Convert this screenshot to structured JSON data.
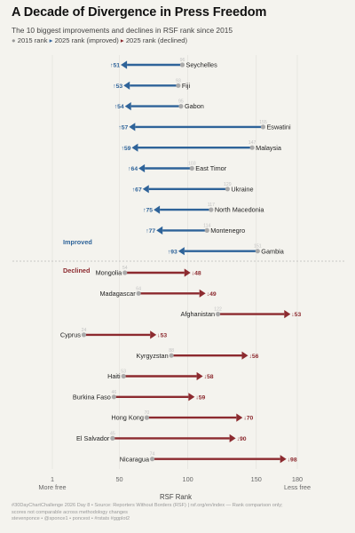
{
  "title": "A Decade of Divergence in Press Freedom",
  "subtitle": "The 10 biggest improvements and declines in RSF rank since 2015",
  "legend": {
    "marker_2015": "●",
    "label_2015": "2015 rank",
    "marker_improved": "▸",
    "label_improved": "2025 rank (improved)",
    "marker_declined": "▸",
    "label_declined": "2025 rank (declined)"
  },
  "caption": {
    "line1": "#30DayChartChallenge 2026 Day 8 • Source: Reporters Without Borders (RSF) | rsf.org/en/index — Rank comparison only;",
    "line2": "scores not comparable across methodology changes",
    "line3": "stevenponce • @sponce1 • poncest • #rstats #ggplot2"
  },
  "colors": {
    "improved": "#2e6399",
    "declined": "#8c2a2f",
    "start_dot": "#aaaaaa",
    "background": "#f4f3ee"
  },
  "chart_data": {
    "type": "dumbbell",
    "xlabel": "RSF Rank",
    "xlim": [
      1,
      180
    ],
    "x_ticks": [
      {
        "value": 1,
        "label": "1",
        "sub": "More free"
      },
      {
        "value": 50,
        "label": "50",
        "sub": ""
      },
      {
        "value": 100,
        "label": "100",
        "sub": ""
      },
      {
        "value": 150,
        "label": "150",
        "sub": ""
      },
      {
        "value": 180,
        "label": "180",
        "sub": "Less free"
      }
    ],
    "groups": [
      {
        "label": "Improved",
        "series": "2025 rank (improved)",
        "rows": [
          {
            "country": "Seychelles",
            "rank_2015": 96,
            "rank_2025": 51,
            "label": "↑51"
          },
          {
            "country": "Fiji",
            "rank_2015": 93,
            "rank_2025": 53,
            "label": "↑53"
          },
          {
            "country": "Gabon",
            "rank_2015": 95,
            "rank_2025": 54,
            "label": "↑54"
          },
          {
            "country": "Eswatini",
            "rank_2015": 155,
            "rank_2025": 57,
            "label": "↑57"
          },
          {
            "country": "Malaysia",
            "rank_2015": 147,
            "rank_2025": 59,
            "label": "↑59"
          },
          {
            "country": "East Timor",
            "rank_2015": 103,
            "rank_2025": 64,
            "label": "↑64"
          },
          {
            "country": "Ukraine",
            "rank_2015": 129,
            "rank_2025": 67,
            "label": "↑67"
          },
          {
            "country": "North Macedonia",
            "rank_2015": 117,
            "rank_2025": 75,
            "label": "↑75"
          },
          {
            "country": "Montenegro",
            "rank_2015": 114,
            "rank_2025": 77,
            "label": "↑77"
          },
          {
            "country": "Gambia",
            "rank_2015": 151,
            "rank_2025": 93,
            "label": "↑93"
          }
        ]
      },
      {
        "label": "Declined",
        "series": "2025 rank (declined)",
        "rows": [
          {
            "country": "Mongolia",
            "rank_2015": 54,
            "rank_2025": 102,
            "label": "↓48"
          },
          {
            "country": "Madagascar",
            "rank_2015": 64,
            "rank_2025": 113,
            "label": "↓49"
          },
          {
            "country": "Afghanistan",
            "rank_2015": 122,
            "rank_2025": 175,
            "label": "↓53"
          },
          {
            "country": "Cyprus",
            "rank_2015": 24,
            "rank_2025": 77,
            "label": "↓53"
          },
          {
            "country": "Kyrgyzstan",
            "rank_2015": 88,
            "rank_2025": 144,
            "label": "↓56"
          },
          {
            "country": "Haiti",
            "rank_2015": 53,
            "rank_2025": 111,
            "label": "↓58"
          },
          {
            "country": "Burkina Faso",
            "rank_2015": 46,
            "rank_2025": 105,
            "label": "↓59"
          },
          {
            "country": "Hong Kong",
            "rank_2015": 70,
            "rank_2025": 140,
            "label": "↓70"
          },
          {
            "country": "El Salvador",
            "rank_2015": 45,
            "rank_2025": 135,
            "label": "↓90"
          },
          {
            "country": "Nicaragua",
            "rank_2015": 74,
            "rank_2025": 172,
            "label": "↓98"
          }
        ]
      }
    ],
    "grid": true,
    "group_divider": "dashed"
  }
}
